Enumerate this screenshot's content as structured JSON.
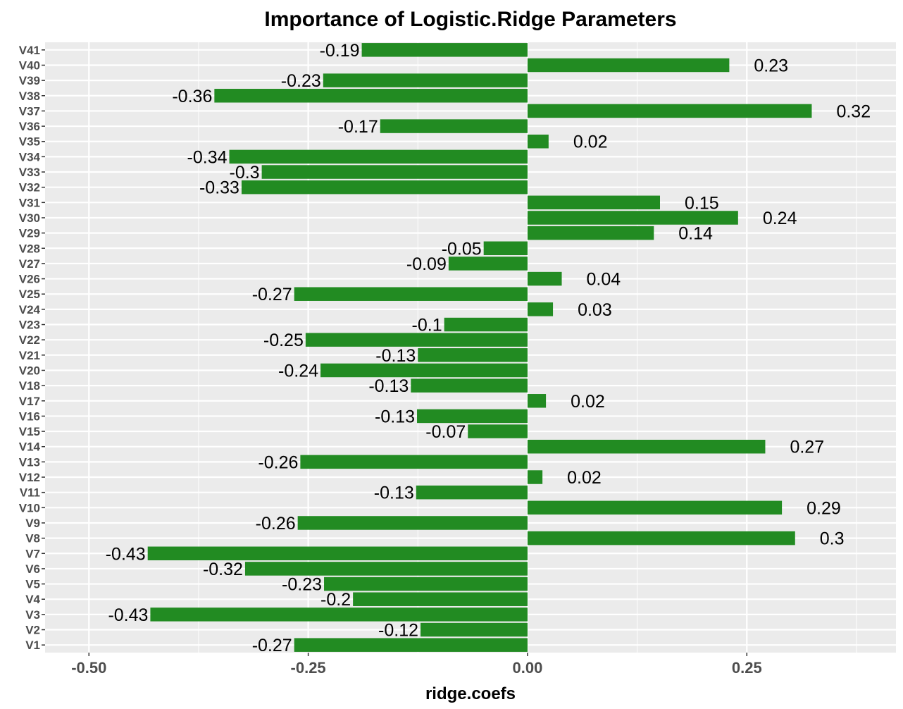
{
  "chart_data": {
    "type": "bar",
    "orientation": "horizontal",
    "title": "Importance of Logistic.Ridge Parameters",
    "xlabel": "ridge.coefs",
    "ylabel": "",
    "xlim": [
      -0.55,
      0.42
    ],
    "x_ticks": [
      -0.5,
      -0.25,
      0.0,
      0.25
    ],
    "x_tick_labels": [
      "-0.50",
      "-0.25",
      "0.00",
      "0.25"
    ],
    "grid": true,
    "legend": "none",
    "colors": {
      "bar": "#228b22",
      "panel": "#ebebeb",
      "grid": "#ffffff"
    },
    "categories": [
      "V1",
      "V2",
      "V3",
      "V4",
      "V5",
      "V6",
      "V7",
      "V8",
      "V9",
      "V10",
      "V11",
      "V12",
      "V13",
      "V14",
      "V15",
      "V16",
      "V17",
      "V18",
      "V20",
      "V21",
      "V22",
      "V23",
      "V24",
      "V25",
      "V26",
      "V27",
      "V28",
      "V29",
      "V30",
      "V31",
      "V32",
      "V33",
      "V34",
      "V35",
      "V36",
      "V37",
      "V38",
      "V39",
      "V40",
      "V41"
    ],
    "values": [
      -0.266,
      -0.122,
      -0.43,
      -0.199,
      -0.232,
      -0.322,
      -0.433,
      0.305,
      -0.262,
      0.29,
      -0.127,
      0.017,
      -0.259,
      0.271,
      -0.068,
      -0.126,
      0.021,
      -0.133,
      -0.236,
      -0.125,
      -0.253,
      -0.095,
      0.029,
      -0.266,
      0.039,
      -0.09,
      -0.05,
      0.144,
      0.24,
      0.151,
      -0.326,
      -0.303,
      -0.34,
      0.024,
      -0.168,
      0.324,
      -0.357,
      -0.233,
      0.23,
      -0.189
    ],
    "value_labels": [
      "-0.27",
      "-0.12",
      "-0.43",
      "-0.2",
      "-0.23",
      "-0.32",
      "-0.43",
      "0.3",
      "-0.26",
      "0.29",
      "-0.13",
      "0.02",
      "-0.26",
      "0.27",
      "-0.07",
      "-0.13",
      "0.02",
      "-0.13",
      "-0.24",
      "-0.13",
      "-0.25",
      "-0.1",
      "0.03",
      "-0.27",
      "0.04",
      "-0.09",
      "-0.05",
      "0.14",
      "0.24",
      "0.15",
      "-0.33",
      "-0.3",
      "-0.34",
      "0.02",
      "-0.17",
      "0.32",
      "-0.36",
      "-0.23",
      "0.23",
      "-0.19"
    ]
  }
}
